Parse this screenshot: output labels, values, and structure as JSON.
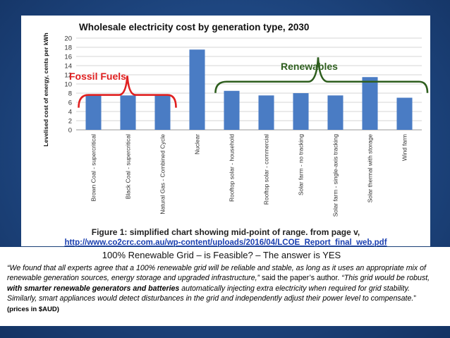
{
  "chart_data": {
    "type": "bar",
    "title": "Wholesale electricity cost by generation type, 2030",
    "ylabel": "Levelised cost of energy, cents per kWh",
    "ylim": [
      0,
      20
    ],
    "yticks": [
      0,
      2,
      4,
      6,
      8,
      10,
      12,
      14,
      16,
      18,
      20
    ],
    "grid": true,
    "categories": [
      "Brown Coal - supercritical",
      "Black Coal - supercritical",
      "Natural Gas - Combined Cycle",
      "Nuclear",
      "Rooftop solar - household",
      "Rooftop solar - commercial",
      "Solar farm - no tracking",
      "Solar farm - single-axis tracking",
      "Solar thermal with storage",
      "Wind farm"
    ],
    "values": [
      7.5,
      7.5,
      7.5,
      17.5,
      8.5,
      7.5,
      8.0,
      7.5,
      11.5,
      7.0
    ],
    "bar_color": "#4a7cc4",
    "annotations": [
      {
        "text": "Fossil Fuels",
        "color": "#e02020",
        "group": [
          0,
          2
        ]
      },
      {
        "text": "Renewables",
        "color": "#2e5e1e",
        "group": [
          4,
          9
        ]
      }
    ],
    "figure_caption": "Figure 1: simplified chart showing mid-point of range. from page v,",
    "source_url": "http://www.co2crc.com.au/wp-content/uploads/2016/04/LCOE_Report_final_web.pdf"
  },
  "caption": {
    "title": "100% Renewable Grid – is Feasible? – The answer is YES",
    "quote1": "“We found that all experts agree that a 100% renewable grid will be reliable and stable, as long as it uses an appropriate mix of renewable generation sources, energy storage and upgraded infrastructure,”",
    "mid": " said the paper’s author. ",
    "quote2": "“This grid would be robust, ",
    "bold": "with smarter renewable generators and batteries",
    "quote3": " automatically injecting extra electricity when required for grid stability. Similarly, smart appliances would detect disturbances in the grid and independently adjust their power level to compensate.",
    "end": "”",
    "prices": " (prices in $AUD)"
  }
}
